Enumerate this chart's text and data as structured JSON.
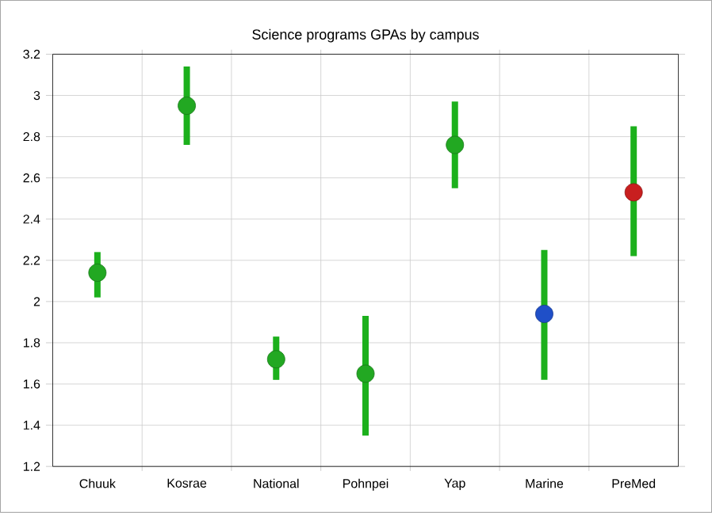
{
  "chart_data": {
    "type": "scatter",
    "title": "Science programs GPAs by campus",
    "categories": [
      "Chuuk",
      "Kosrae",
      "National",
      "Pohnpei",
      "Yap",
      "Marine",
      "PreMed"
    ],
    "values": [
      2.14,
      2.95,
      1.72,
      1.65,
      2.76,
      1.94,
      2.53
    ],
    "errors": [
      [
        2.02,
        2.24
      ],
      [
        2.76,
        3.14
      ],
      [
        1.62,
        1.83
      ],
      [
        1.35,
        1.93
      ],
      [
        2.55,
        2.97
      ],
      [
        1.62,
        2.25
      ],
      [
        2.22,
        2.85
      ]
    ],
    "color": "#1cb01c",
    "colors": [
      "#22a822",
      "#22a822",
      "#22a822",
      "#22a822",
      "#22a822",
      "#1f4fc8",
      "#c81f1f"
    ],
    "ylim": [
      1.2,
      3.2
    ],
    "yticks": [
      1.2,
      1.4,
      1.6,
      1.8,
      2,
      2.2,
      2.4,
      2.6,
      2.8,
      3,
      3.2
    ],
    "grid": true
  }
}
